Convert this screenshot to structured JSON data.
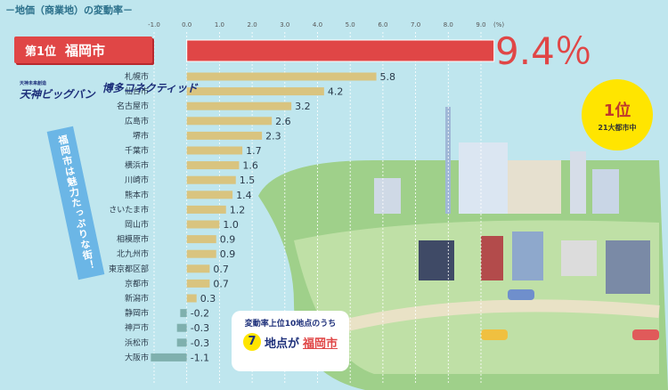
{
  "title": "－地価（商業地）の変動率－",
  "axis_unit": "(%)",
  "top": {
    "rank_label": "第1位",
    "city": "福岡市",
    "value_label": "9.4％"
  },
  "badge": {
    "rank": "1位",
    "caption": "21大都市中"
  },
  "logos": [
    {
      "main": "天神ビッグバン",
      "sub": "天神未来創造"
    },
    {
      "main": "博多コネクティッド",
      "sub": ""
    }
  ],
  "ribbon_text": "福岡市は魅力たっぷりな街！",
  "note": {
    "line1": "変動率上位10地点のうち",
    "count": "7",
    "suffix": "地点が",
    "city": "福岡市"
  },
  "colors": {
    "top_bar": "#e04646",
    "bar": "#d9c47f",
    "neg_bar": "#7fb0ae",
    "accent": "#ffe500"
  },
  "chart_data": {
    "type": "bar",
    "orientation": "horizontal",
    "xlim": [
      -1.0,
      9.0
    ],
    "ticks": [
      "-1.0",
      "0.0",
      "1.0",
      "2.0",
      "3.0",
      "4.0",
      "5.0",
      "6.0",
      "7.0",
      "8.0",
      "9.0"
    ],
    "categories": [
      "福岡市",
      "札幌市",
      "仙台市",
      "名古屋市",
      "広島市",
      "堺市",
      "千葉市",
      "横浜市",
      "川崎市",
      "熊本市",
      "さいたま市",
      "岡山市",
      "相模原市",
      "北九州市",
      "東京都区部",
      "京都市",
      "新潟市",
      "静岡市",
      "神戸市",
      "浜松市",
      "大阪市"
    ],
    "values": [
      9.4,
      5.8,
      4.2,
      3.2,
      2.6,
      2.3,
      1.7,
      1.6,
      1.5,
      1.4,
      1.2,
      1.0,
      0.9,
      0.9,
      0.7,
      0.7,
      0.3,
      -0.2,
      -0.3,
      -0.3,
      -1.1
    ],
    "labels": [
      "",
      "5.8",
      "4.2",
      "3.2",
      "2.6",
      "2.3",
      "1.7",
      "1.6",
      "1.5",
      "1.4",
      "1.2",
      "1.0",
      "0.9",
      "0.9",
      "0.7",
      "0.7",
      "0.3",
      "-0.2",
      "-0.3",
      "-0.3",
      "-1.1"
    ]
  }
}
